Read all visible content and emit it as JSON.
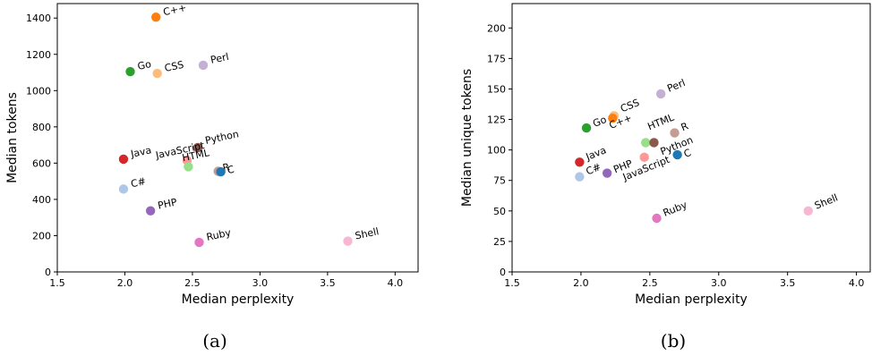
{
  "chart_data": [
    {
      "type": "scatter",
      "caption": "(a)",
      "xlabel": "Median perplexity",
      "ylabel": "Median tokens",
      "xlim": [
        1.5,
        4.17
      ],
      "ylim": [
        0,
        1480
      ],
      "xticks": [
        1.5,
        2.0,
        2.5,
        3.0,
        3.5,
        4.0
      ],
      "xtick_labels": [
        "1.5",
        "2.0",
        "2.5",
        "3.0",
        "3.5",
        "4.0"
      ],
      "yticks": [
        0,
        200,
        400,
        600,
        800,
        1000,
        1200,
        1400
      ],
      "ytick_labels": [
        "0",
        "200",
        "400",
        "600",
        "800",
        "1000",
        "1200",
        "1400"
      ],
      "grid": false,
      "points": [
        {
          "name": "C++",
          "x": 2.23,
          "y": 1405,
          "color": "#ff7f0e"
        },
        {
          "name": "Go",
          "x": 2.04,
          "y": 1105,
          "color": "#2ca02c"
        },
        {
          "name": "CSS",
          "x": 2.24,
          "y": 1095,
          "color": "#ffbb78"
        },
        {
          "name": "Perl",
          "x": 2.58,
          "y": 1140,
          "color": "#c5b0d5"
        },
        {
          "name": "Java",
          "x": 1.99,
          "y": 622,
          "color": "#d62728"
        },
        {
          "name": "Python",
          "x": 2.54,
          "y": 686,
          "color": "#8c564b"
        },
        {
          "name": "JavaScript",
          "x": 2.46,
          "y": 615,
          "color": "#ff9896"
        },
        {
          "name": "HTML",
          "x": 2.47,
          "y": 580,
          "color": "#98df8a"
        },
        {
          "name": "R",
          "x": 2.69,
          "y": 555,
          "color": "#c49c94"
        },
        {
          "name": "C",
          "x": 2.71,
          "y": 552,
          "color": "#1f77b4"
        },
        {
          "name": "C#",
          "x": 1.99,
          "y": 457,
          "color": "#aec7e8"
        },
        {
          "name": "PHP",
          "x": 2.19,
          "y": 337,
          "color": "#9467bd"
        },
        {
          "name": "Ruby",
          "x": 2.55,
          "y": 163,
          "color": "#e377c2"
        },
        {
          "name": "Shell",
          "x": 3.65,
          "y": 170,
          "color": "#f7b6d2"
        }
      ]
    },
    {
      "type": "scatter",
      "caption": "(b)",
      "xlabel": "Median perplexity",
      "ylabel": "Median unique tokens",
      "xlim": [
        1.5,
        4.1
      ],
      "ylim": [
        0,
        220
      ],
      "xticks": [
        1.5,
        2.0,
        2.5,
        3.0,
        3.5,
        4.0
      ],
      "xtick_labels": [
        "1.5",
        "2.0",
        "2.5",
        "3.0",
        "3.5",
        "4.0"
      ],
      "yticks": [
        0,
        25,
        50,
        75,
        100,
        125,
        150,
        175,
        200
      ],
      "ytick_labels": [
        "0",
        "25",
        "50",
        "75",
        "100",
        "125",
        "150",
        "175",
        "200"
      ],
      "grid": false,
      "points": [
        {
          "name": "Perl",
          "x": 2.58,
          "y": 146,
          "color": "#c5b0d5"
        },
        {
          "name": "CSS",
          "x": 2.24,
          "y": 128,
          "color": "#ffbb78"
        },
        {
          "name": "C++",
          "x": 2.23,
          "y": 126,
          "color": "#ff7f0e"
        },
        {
          "name": "Go",
          "x": 2.04,
          "y": 118,
          "color": "#2ca02c"
        },
        {
          "name": "R",
          "x": 2.68,
          "y": 114,
          "color": "#c49c94"
        },
        {
          "name": "HTML",
          "x": 2.47,
          "y": 106,
          "color": "#98df8a"
        },
        {
          "name": "Python",
          "x": 2.53,
          "y": 106,
          "color": "#8c564b"
        },
        {
          "name": "C",
          "x": 2.7,
          "y": 96,
          "color": "#1f77b4"
        },
        {
          "name": "JavaScript",
          "x": 2.46,
          "y": 94,
          "color": "#ff9896"
        },
        {
          "name": "Java",
          "x": 1.99,
          "y": 90,
          "color": "#d62728"
        },
        {
          "name": "PHP",
          "x": 2.19,
          "y": 81,
          "color": "#9467bd"
        },
        {
          "name": "C#",
          "x": 1.99,
          "y": 78,
          "color": "#aec7e8"
        },
        {
          "name": "Shell",
          "x": 3.65,
          "y": 50,
          "color": "#f7b6d2"
        },
        {
          "name": "Ruby",
          "x": 2.55,
          "y": 44,
          "color": "#e377c2"
        }
      ]
    }
  ]
}
